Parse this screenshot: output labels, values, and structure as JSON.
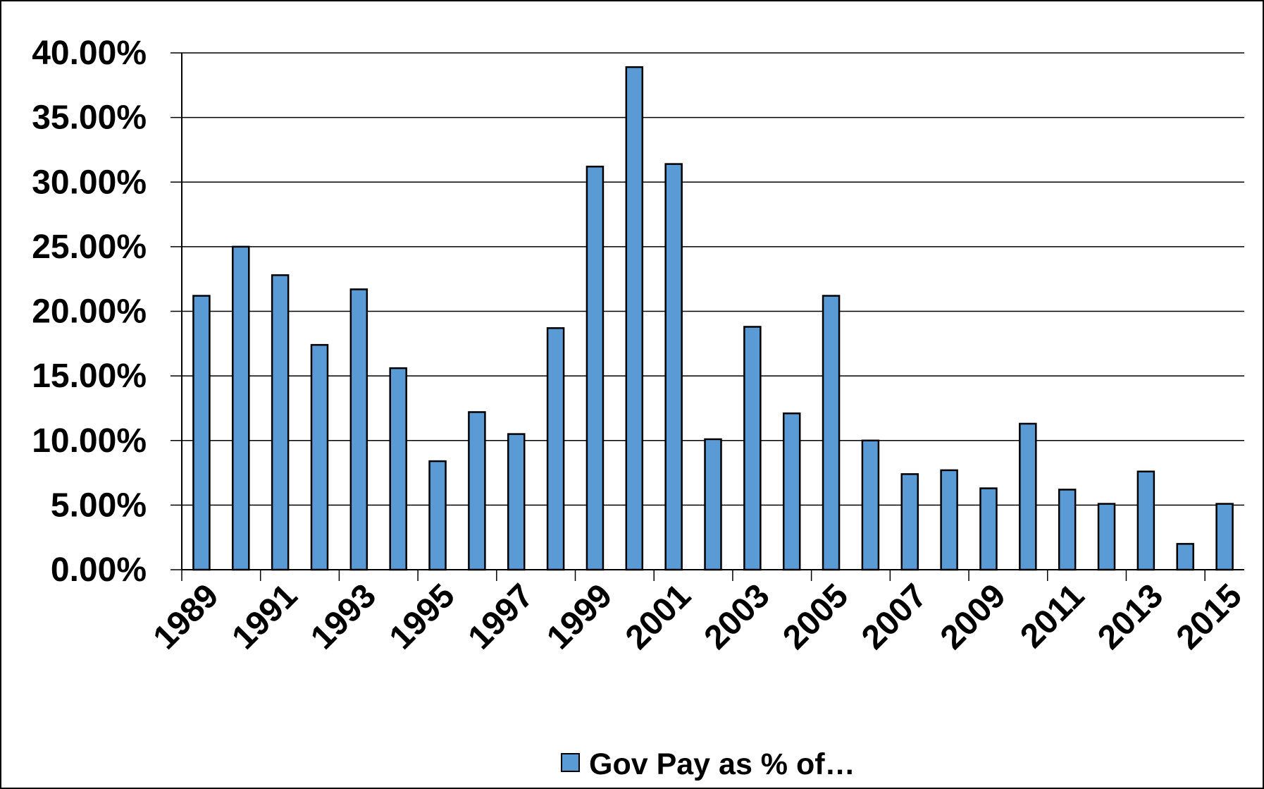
{
  "chart_data": {
    "type": "bar",
    "categories": [
      "1989",
      "1990",
      "1991",
      "1992",
      "1993",
      "1994",
      "1995",
      "1996",
      "1997",
      "1998",
      "1999",
      "2000",
      "2001",
      "2002",
      "2003",
      "2004",
      "2005",
      "2006",
      "2007",
      "2008",
      "2009",
      "2010",
      "2011",
      "2012",
      "2013",
      "2014",
      "2015"
    ],
    "x_tick_labels": [
      "1989",
      "1991",
      "1993",
      "1995",
      "1997",
      "1999",
      "2001",
      "2003",
      "2005",
      "2007",
      "2009",
      "2011",
      "2013",
      "2015"
    ],
    "series": [
      {
        "name": "Gov Pay as % of…",
        "color": "#5b9bd5",
        "values": [
          21.2,
          25.0,
          22.8,
          17.4,
          21.7,
          15.6,
          8.4,
          12.2,
          10.5,
          18.7,
          31.2,
          38.9,
          31.4,
          10.1,
          18.8,
          12.1,
          21.2,
          10.0,
          7.4,
          7.7,
          6.3,
          11.3,
          6.2,
          5.1,
          7.6,
          2.0,
          5.1
        ]
      }
    ],
    "y_tick_labels": [
      "0.00%",
      "5.00%",
      "10.00%",
      "15.00%",
      "20.00%",
      "25.00%",
      "30.00%",
      "35.00%",
      "40.00%"
    ],
    "ylim": [
      0,
      40
    ],
    "y_step": 5,
    "grid": true,
    "legend_position": "bottom",
    "title": "",
    "xlabel": "",
    "ylabel": "",
    "colors": {
      "bar": "#5b9bd5",
      "bar_outline": "#000000",
      "grid": "#000000",
      "background": "#ffffff"
    }
  },
  "legend": {
    "label": "Gov Pay as % of…"
  }
}
